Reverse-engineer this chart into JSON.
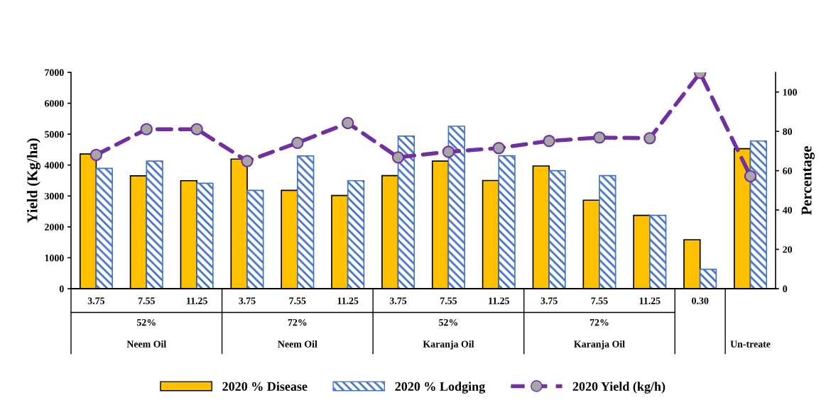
{
  "chart_data": {
    "type": "bar",
    "categories": [
      "3.75",
      "7.55",
      "11.25",
      "3.75",
      "7.55",
      "11.25",
      "3.75",
      "7.55",
      "11.25",
      "3.75",
      "7.55",
      "11.25",
      "0.30",
      null
    ],
    "series": [
      {
        "name": "2020 % Disease",
        "axis": "y2",
        "color": "#ffc000",
        "values": [
          68.5,
          57.4,
          54.9,
          65.9,
          50.0,
          47.4,
          57.5,
          64.9,
          55.0,
          62.4,
          45.0,
          37.3,
          24.9,
          71.2
        ]
      },
      {
        "name": "2020 % Lodging",
        "axis": "y2",
        "color": "#4472c4",
        "values": [
          61.2,
          64.9,
          53.6,
          50.0,
          67.5,
          54.9,
          77.6,
          82.6,
          67.6,
          60.0,
          57.5,
          37.3,
          9.9,
          75.1
        ]
      },
      {
        "name": "2020 Yield (kg/h)",
        "type": "line",
        "axis": "y",
        "color": "#7030a0",
        "marker": "circle",
        "line_style": "dashed",
        "values": [
          4330,
          5160,
          5160,
          4130,
          4720,
          5360,
          4250,
          4430,
          4550,
          4780,
          4890,
          4870,
          6980,
          3640
        ]
      }
    ],
    "ylabel": "Yield (Kg/ha)",
    "y2label": "Percentage",
    "ylim": [
      0,
      7000
    ],
    "yticks": [
      0,
      1000,
      2000,
      3000,
      4000,
      5000,
      6000,
      7000
    ],
    "y2lim": [
      0,
      110
    ],
    "y2ticks": [
      0,
      20,
      40,
      60,
      80,
      100
    ],
    "annotations": [
      "52%",
      "72%",
      "52%",
      "72%",
      "Neem Oil",
      "Neem Oil",
      "Karanja Oil",
      "Karanja Oil",
      "Un-treate"
    ],
    "legend": "bottom",
    "grid": false
  }
}
